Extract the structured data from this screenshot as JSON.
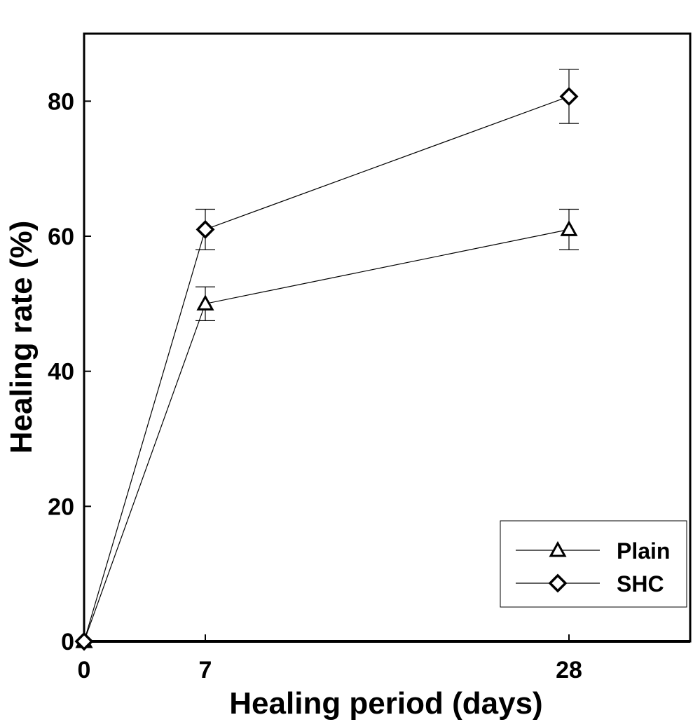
{
  "chart_data": {
    "type": "line",
    "title": "",
    "xlabel": "Healing period (days)",
    "ylabel": "Healing rate (%)",
    "x": [
      0,
      7,
      28
    ],
    "x_ticks": [
      0,
      7,
      28
    ],
    "x_tick_labels": [
      "0",
      "7",
      "28"
    ],
    "xlim": [
      0,
      35
    ],
    "y_ticks": [
      0,
      20,
      40,
      60,
      80
    ],
    "y_tick_labels": [
      "0",
      "20",
      "40",
      "60",
      "80"
    ],
    "ylim": [
      0,
      90
    ],
    "grid": false,
    "legend": {
      "placement": "bottom-right",
      "entries": [
        "Plain",
        "SHC"
      ]
    },
    "series": [
      {
        "name": "Plain",
        "marker": "triangle",
        "values": [
          0,
          50,
          61
        ],
        "error": [
          0,
          2.5,
          3
        ]
      },
      {
        "name": "SHC",
        "marker": "diamond",
        "values": [
          0,
          61,
          80.7
        ],
        "error": [
          0,
          3,
          4
        ]
      }
    ],
    "colors": {
      "line": "#000000",
      "background": "#ffffff"
    }
  }
}
